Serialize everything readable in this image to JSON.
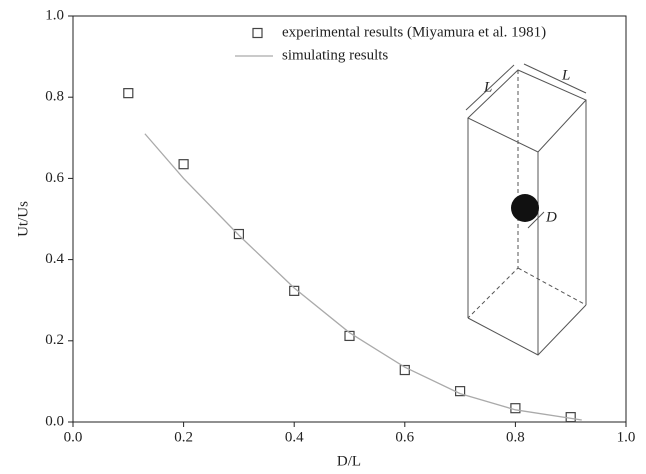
{
  "chart_data": {
    "type": "scatter",
    "xlabel": "D/L",
    "ylabel": "Ut/Us",
    "xlim": [
      0,
      1
    ],
    "ylim": [
      0,
      1
    ],
    "xticks": [
      {
        "value": 0,
        "label": "0.0"
      },
      {
        "value": 0.2,
        "label": "0.2"
      },
      {
        "value": 0.4,
        "label": "0.4"
      },
      {
        "value": 0.6,
        "label": "0.6"
      },
      {
        "value": 0.8,
        "label": "0.8"
      },
      {
        "value": 1,
        "label": "1.0"
      }
    ],
    "yticks": [
      {
        "value": 0,
        "label": "0.0"
      },
      {
        "value": 0.2,
        "label": "0.2"
      },
      {
        "value": 0.4,
        "label": "0.4"
      },
      {
        "value": 0.6,
        "label": "0.6"
      },
      {
        "value": 0.8,
        "label": "0.8"
      },
      {
        "value": 1,
        "label": "1.0"
      }
    ],
    "legend": "upper right",
    "series": [
      {
        "name": "experimental results (Miyamura et al. 1981)",
        "style": "markers",
        "color": "#444444",
        "x": [
          0.1,
          0.2,
          0.3,
          0.4,
          0.5,
          0.6,
          0.7,
          0.8,
          0.9
        ],
        "values": [
          0.81,
          0.635,
          0.463,
          0.323,
          0.212,
          0.128,
          0.076,
          0.034,
          0.012
        ]
      },
      {
        "name": "simulating results",
        "style": "line",
        "color": "#aaaaaa",
        "x": [
          0.13,
          0.2,
          0.3,
          0.4,
          0.5,
          0.6,
          0.7,
          0.8,
          0.92
        ],
        "values": [
          0.71,
          0.6,
          0.46,
          0.33,
          0.22,
          0.135,
          0.07,
          0.03,
          0.005
        ]
      }
    ],
    "annotations": [
      "L",
      "L",
      "D"
    ]
  }
}
